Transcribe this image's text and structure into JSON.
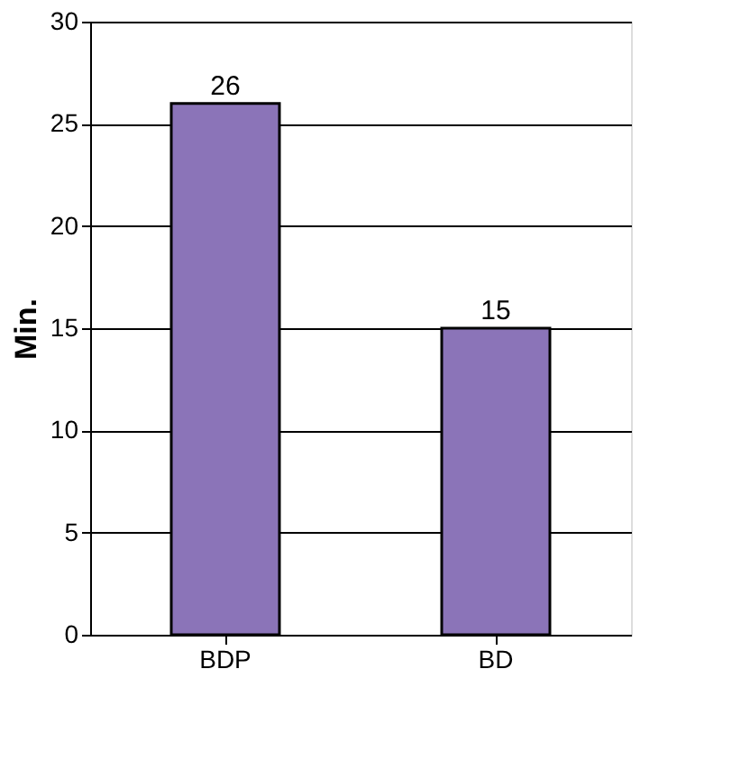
{
  "chart_data": {
    "type": "bar",
    "ylabel": "Min.",
    "categories": [
      "BDP",
      "BD"
    ],
    "values": [
      26,
      15
    ],
    "color": "#8b74b8",
    "ylim": [
      0,
      30
    ],
    "yticks": [
      0,
      5,
      10,
      15,
      20,
      25,
      30
    ],
    "grid": "y",
    "data_labels": true
  }
}
